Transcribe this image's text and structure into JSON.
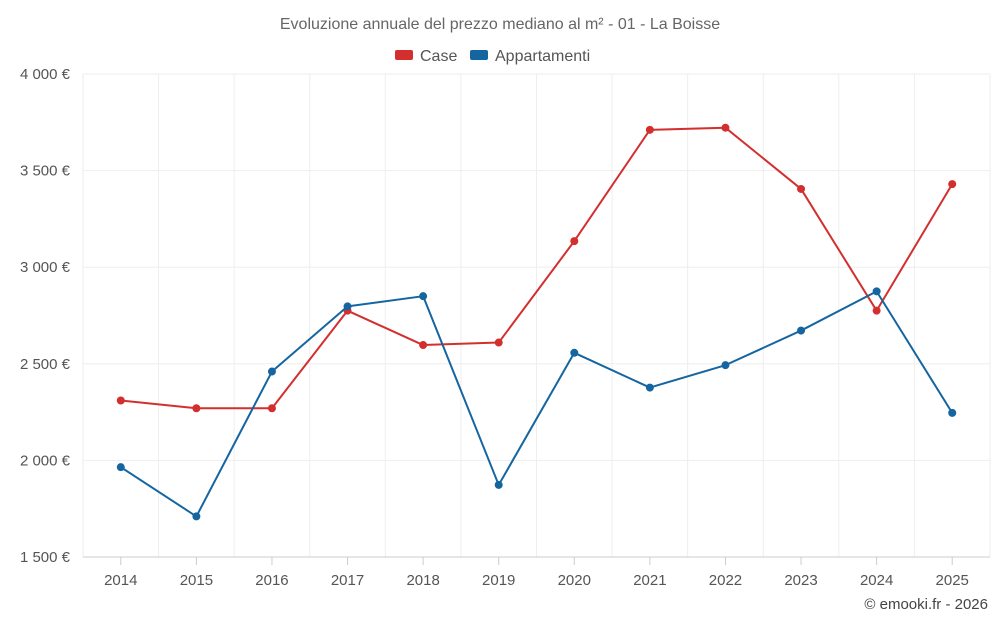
{
  "chart_data": {
    "type": "line",
    "title": "Evoluzione annuale del prezzo mediano al m² - 01 - La Boisse",
    "categories": [
      "2014",
      "2015",
      "2016",
      "2017",
      "2018",
      "2019",
      "2020",
      "2021",
      "2022",
      "2023",
      "2024",
      "2025"
    ],
    "series": [
      {
        "name": "Case",
        "color": "#d32f2f",
        "values": [
          2310,
          2270,
          2270,
          2775,
          2597,
          2610,
          3135,
          3711,
          3722,
          3405,
          2775,
          3430
        ]
      },
      {
        "name": "Appartamenti",
        "color": "#1565a0",
        "values": [
          1965,
          1710,
          2460,
          2797,
          2850,
          1873,
          2557,
          2377,
          2493,
          2672,
          2875,
          2246
        ]
      }
    ],
    "ylim": [
      1500,
      4000
    ],
    "yticks": [
      1500,
      2000,
      2500,
      3000,
      3500,
      4000
    ],
    "ytick_labels": [
      "1 500 €",
      "2 000 €",
      "2 500 €",
      "3 000 €",
      "3 500 €",
      "4 000 €"
    ],
    "xlabel": "",
    "ylabel": "",
    "legend_position": "top-center",
    "grid": true
  },
  "credit": "© emooki.fr - 2026"
}
